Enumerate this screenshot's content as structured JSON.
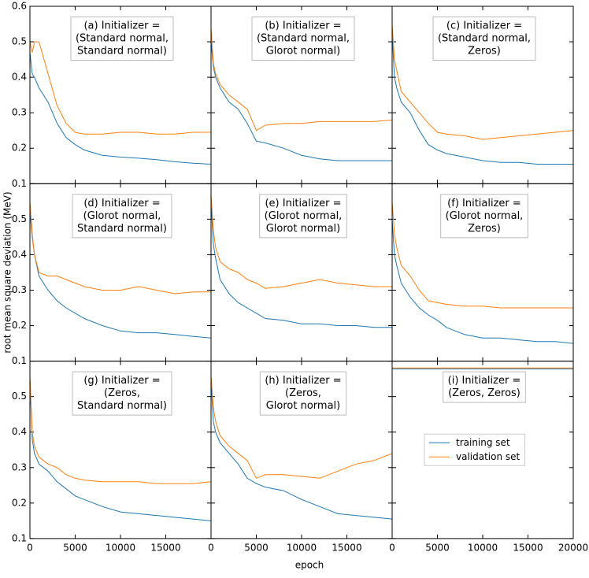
{
  "xlabel": "epoch",
  "ylabel": "root mean square deviation (MeV)",
  "chart_data": [
    {
      "type": "line",
      "annotation": [
        "(a) Initializer =",
        "(Standard normal,",
        "Standard normal)"
      ],
      "x": [
        0,
        250,
        500,
        1000,
        2000,
        3000,
        4000,
        5000,
        6000,
        8000,
        10000,
        12000,
        14000,
        16000,
        18000,
        20000
      ],
      "xlim": [
        0,
        20000
      ],
      "ylim": [
        0.1,
        0.6
      ],
      "yticks": [
        0.1,
        0.2,
        0.3,
        0.4,
        0.5,
        0.6
      ],
      "series": [
        {
          "color": "#1f77b4",
          "values": [
            0.47,
            0.41,
            0.4,
            0.37,
            0.33,
            0.27,
            0.23,
            0.21,
            0.195,
            0.18,
            0.175,
            0.172,
            0.168,
            0.162,
            0.158,
            0.155
          ]
        },
        {
          "color": "#ff7f0e",
          "values": [
            0.5,
            0.47,
            0.5,
            0.5,
            0.41,
            0.32,
            0.27,
            0.245,
            0.24,
            0.24,
            0.245,
            0.245,
            0.24,
            0.24,
            0.245,
            0.245
          ]
        }
      ]
    },
    {
      "type": "line",
      "annotation": [
        "(b) Initializer =",
        "(Standard normal,",
        "Glorot normal)"
      ],
      "x": [
        0,
        250,
        500,
        1000,
        2000,
        3000,
        4000,
        5000,
        6000,
        8000,
        10000,
        12000,
        14000,
        16000,
        18000,
        20000
      ],
      "xlim": [
        0,
        20000
      ],
      "ylim": [
        0.1,
        0.6
      ],
      "series": [
        {
          "color": "#1f77b4",
          "values": [
            0.5,
            0.43,
            0.4,
            0.37,
            0.33,
            0.31,
            0.27,
            0.22,
            0.215,
            0.2,
            0.18,
            0.17,
            0.165,
            0.165,
            0.165,
            0.165
          ]
        },
        {
          "color": "#ff7f0e",
          "values": [
            0.54,
            0.44,
            0.41,
            0.38,
            0.35,
            0.33,
            0.31,
            0.25,
            0.265,
            0.27,
            0.27,
            0.275,
            0.275,
            0.275,
            0.275,
            0.28
          ]
        }
      ]
    },
    {
      "type": "line",
      "annotation": [
        "(c) Initializer =",
        "(Standard normal,",
        "Zeros)"
      ],
      "x": [
        0,
        250,
        500,
        1000,
        2000,
        3000,
        4000,
        5000,
        6000,
        8000,
        10000,
        12000,
        14000,
        16000,
        18000,
        20000
      ],
      "xlim": [
        0,
        20000
      ],
      "ylim": [
        0.1,
        0.6
      ],
      "series": [
        {
          "color": "#1f77b4",
          "values": [
            0.52,
            0.4,
            0.37,
            0.33,
            0.3,
            0.25,
            0.21,
            0.195,
            0.185,
            0.175,
            0.165,
            0.16,
            0.16,
            0.155,
            0.155,
            0.155
          ]
        },
        {
          "color": "#ff7f0e",
          "values": [
            0.55,
            0.45,
            0.42,
            0.36,
            0.33,
            0.3,
            0.27,
            0.245,
            0.24,
            0.235,
            0.225,
            0.23,
            0.235,
            0.24,
            0.245,
            0.25
          ]
        }
      ]
    },
    {
      "type": "line",
      "annotation": [
        "(d) Initializer =",
        "(Glorot normal,",
        "Standard normal)"
      ],
      "x": [
        0,
        250,
        500,
        1000,
        2000,
        3000,
        4000,
        5000,
        6000,
        8000,
        10000,
        12000,
        14000,
        16000,
        18000,
        20000
      ],
      "xlim": [
        0,
        20000
      ],
      "ylim": [
        0.1,
        0.6
      ],
      "yticks": [
        0.1,
        0.2,
        0.3,
        0.4,
        0.5
      ],
      "series": [
        {
          "color": "#1f77b4",
          "values": [
            0.52,
            0.45,
            0.4,
            0.34,
            0.3,
            0.27,
            0.25,
            0.235,
            0.22,
            0.2,
            0.185,
            0.18,
            0.18,
            0.175,
            0.17,
            0.165
          ]
        },
        {
          "color": "#ff7f0e",
          "values": [
            0.55,
            0.46,
            0.4,
            0.35,
            0.34,
            0.34,
            0.33,
            0.32,
            0.31,
            0.3,
            0.3,
            0.31,
            0.3,
            0.29,
            0.295,
            0.295
          ]
        }
      ]
    },
    {
      "type": "line",
      "annotation": [
        "(e) Initializer =",
        "(Glorot normal,",
        "Glorot normal)"
      ],
      "x": [
        0,
        250,
        500,
        1000,
        2000,
        3000,
        4000,
        5000,
        6000,
        8000,
        10000,
        12000,
        14000,
        16000,
        18000,
        20000
      ],
      "xlim": [
        0,
        20000
      ],
      "ylim": [
        0.1,
        0.6
      ],
      "series": [
        {
          "color": "#1f77b4",
          "values": [
            0.55,
            0.43,
            0.39,
            0.33,
            0.29,
            0.265,
            0.25,
            0.235,
            0.22,
            0.215,
            0.205,
            0.205,
            0.2,
            0.2,
            0.195,
            0.195
          ]
        },
        {
          "color": "#ff7f0e",
          "values": [
            0.57,
            0.47,
            0.42,
            0.38,
            0.36,
            0.35,
            0.33,
            0.32,
            0.305,
            0.31,
            0.32,
            0.33,
            0.32,
            0.315,
            0.31,
            0.31
          ]
        }
      ]
    },
    {
      "type": "line",
      "annotation": [
        "(f) Initializer =",
        "(Glorot normal,",
        "Zeros)"
      ],
      "x": [
        0,
        250,
        500,
        1000,
        2000,
        3000,
        4000,
        5000,
        6000,
        8000,
        10000,
        12000,
        14000,
        16000,
        18000,
        20000
      ],
      "xlim": [
        0,
        20000
      ],
      "ylim": [
        0.1,
        0.6
      ],
      "series": [
        {
          "color": "#1f77b4",
          "values": [
            0.5,
            0.4,
            0.37,
            0.32,
            0.28,
            0.25,
            0.23,
            0.215,
            0.195,
            0.175,
            0.165,
            0.165,
            0.16,
            0.155,
            0.155,
            0.15
          ]
        },
        {
          "color": "#ff7f0e",
          "values": [
            0.55,
            0.46,
            0.42,
            0.37,
            0.34,
            0.3,
            0.27,
            0.265,
            0.26,
            0.255,
            0.255,
            0.25,
            0.25,
            0.25,
            0.25,
            0.25
          ]
        }
      ]
    },
    {
      "type": "line",
      "annotation": [
        "(g) Initializer =",
        "(Zeros,",
        "Standard normal)"
      ],
      "x": [
        0,
        250,
        500,
        1000,
        2000,
        3000,
        4000,
        5000,
        6000,
        8000,
        10000,
        12000,
        14000,
        16000,
        18000,
        20000
      ],
      "xlim": [
        0,
        20000
      ],
      "ylim": [
        0.1,
        0.6
      ],
      "yticks": [
        0.1,
        0.2,
        0.3,
        0.4,
        0.5
      ],
      "xticks": [
        0,
        5000,
        10000,
        15000
      ],
      "series": [
        {
          "color": "#1f77b4",
          "values": [
            0.55,
            0.38,
            0.34,
            0.31,
            0.29,
            0.26,
            0.24,
            0.22,
            0.21,
            0.19,
            0.175,
            0.17,
            0.165,
            0.16,
            0.155,
            0.15
          ]
        },
        {
          "color": "#ff7f0e",
          "values": [
            0.56,
            0.4,
            0.36,
            0.33,
            0.31,
            0.3,
            0.28,
            0.27,
            0.265,
            0.26,
            0.26,
            0.26,
            0.255,
            0.255,
            0.255,
            0.26
          ]
        }
      ]
    },
    {
      "type": "line",
      "annotation": [
        "(h) Initializer =",
        "(Zeros,",
        "Glorot normal)"
      ],
      "x": [
        0,
        250,
        500,
        1000,
        2000,
        3000,
        4000,
        5000,
        6000,
        8000,
        10000,
        12000,
        14000,
        16000,
        18000,
        20000
      ],
      "xlim": [
        0,
        20000
      ],
      "ylim": [
        0.1,
        0.6
      ],
      "xticks": [
        0,
        5000,
        10000,
        15000
      ],
      "series": [
        {
          "color": "#1f77b4",
          "values": [
            0.55,
            0.43,
            0.4,
            0.37,
            0.34,
            0.31,
            0.27,
            0.255,
            0.245,
            0.235,
            0.21,
            0.19,
            0.17,
            0.165,
            0.16,
            0.155
          ]
        },
        {
          "color": "#ff7f0e",
          "values": [
            0.56,
            0.47,
            0.43,
            0.39,
            0.36,
            0.34,
            0.32,
            0.27,
            0.28,
            0.28,
            0.275,
            0.27,
            0.29,
            0.31,
            0.32,
            0.34
          ]
        }
      ]
    },
    {
      "type": "line",
      "annotation": [
        "(i) Initializer =",
        "(Zeros, Zeros)"
      ],
      "x": [
        0,
        250,
        500,
        1000,
        2000,
        3000,
        4000,
        5000,
        6000,
        8000,
        10000,
        12000,
        14000,
        16000,
        18000,
        20000
      ],
      "xlim": [
        0,
        20000
      ],
      "ylim": [
        0.1,
        0.6
      ],
      "xticks": [
        0,
        5000,
        10000,
        15000,
        20000
      ],
      "legend": "center right",
      "series": [
        {
          "name": "training set",
          "color": "#1f77b4",
          "values": [
            0.578,
            0.578,
            0.578,
            0.578,
            0.578,
            0.578,
            0.578,
            0.578,
            0.578,
            0.578,
            0.578,
            0.578,
            0.578,
            0.578,
            0.578,
            0.578
          ]
        },
        {
          "name": "validation set",
          "color": "#ff7f0e",
          "values": [
            0.581,
            0.581,
            0.581,
            0.581,
            0.581,
            0.581,
            0.581,
            0.581,
            0.581,
            0.581,
            0.581,
            0.581,
            0.581,
            0.581,
            0.581,
            0.581
          ]
        }
      ]
    }
  ]
}
